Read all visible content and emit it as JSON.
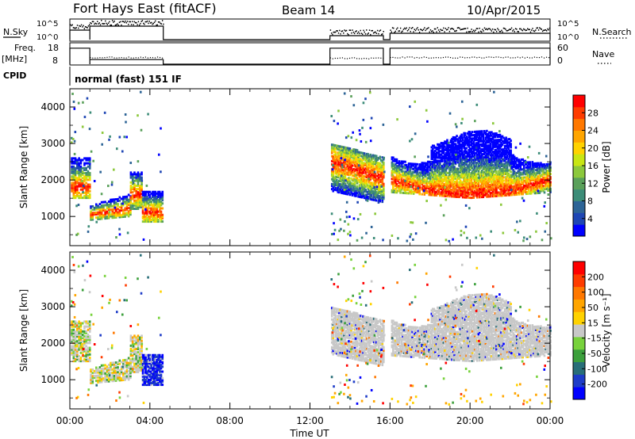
{
  "header": {
    "station": "Fort Hays East (fitACF)",
    "beam": "Beam 14",
    "date": "10/Apr/2015"
  },
  "noise_panel": {
    "left_label": "N.Sky",
    "right_label": "N.Search",
    "left_ticks": [
      "10^5",
      "10^0"
    ],
    "right_ticks": [
      "10^5",
      "10^0"
    ]
  },
  "freq_panel": {
    "left_label_1": "Freq.",
    "left_label_2": "[MHz]",
    "right_label": "Nave",
    "left_ticks": [
      "18",
      "8"
    ],
    "right_ticks": [
      "60",
      "0"
    ]
  },
  "cpid": {
    "label": "CPID",
    "mode": "normal (fast) 151 IF"
  },
  "power_panel": {
    "ylabel": "Slant Range [km]",
    "colorbar_label": "Power [dB]",
    "colorbar_ticks": [
      "28",
      "24",
      "20",
      "16",
      "12",
      "8",
      "4"
    ],
    "colors": [
      "#0000ff",
      "#1e46b4",
      "#2d6496",
      "#3c8c78",
      "#5aa05a",
      "#8cc83c",
      "#c8e614",
      "#ffd200",
      "#ffa500",
      "#ff7800",
      "#ff3c00",
      "#ff0000"
    ]
  },
  "velocity_panel": {
    "ylabel": "Slant Range [km]",
    "colorbar_label": "Velocity [m s⁻¹]",
    "colorbar_ticks": [
      "200",
      "100",
      "50",
      "15",
      "-15",
      "-50",
      "-100",
      "-200"
    ],
    "colors": [
      "#0000ff",
      "#1e3cc8",
      "#286e78",
      "#3ca03c",
      "#78d23c",
      "#c8c8c8",
      "#ffd200",
      "#ffa500",
      "#ff7800",
      "#ff3c00",
      "#ff0000"
    ]
  },
  "chart_data": {
    "type": "heatmap",
    "xlabel": "Time UT",
    "x_ticks": [
      "00:00",
      "04:00",
      "08:00",
      "12:00",
      "16:00",
      "20:00",
      "00:00"
    ],
    "xlim_hours": [
      0,
      24
    ],
    "y_ticks_km": [
      1000,
      2000,
      3000,
      4000
    ],
    "ylim_km": [
      200,
      4500
    ],
    "data_gaps_ut": [
      [
        "04:40",
        "13:00"
      ],
      [
        "15:40",
        "16:00"
      ]
    ],
    "frequency_mhz": [
      {
        "from": "00:00",
        "to": "01:00",
        "value": 16
      },
      {
        "from": "01:00",
        "to": "04:40",
        "value": 10
      },
      {
        "from": "13:00",
        "to": "15:40",
        "value": 16
      },
      {
        "from": "16:00",
        "to": "24:00",
        "value": 16
      }
    ],
    "power_bands": [
      {
        "from": "00:00",
        "to": "01:00",
        "range_km": [
          1500,
          2600
        ],
        "peak_db": 24
      },
      {
        "from": "01:00",
        "to": "04:40",
        "range_km": [
          900,
          2200
        ],
        "peak_db": 22
      },
      {
        "from": "13:00",
        "to": "15:40",
        "range_km": [
          1600,
          3000
        ],
        "peak_db": 24
      },
      {
        "from": "16:00",
        "to": "24:00",
        "range_km": [
          1400,
          3200
        ],
        "peak_db": 22
      }
    ]
  }
}
